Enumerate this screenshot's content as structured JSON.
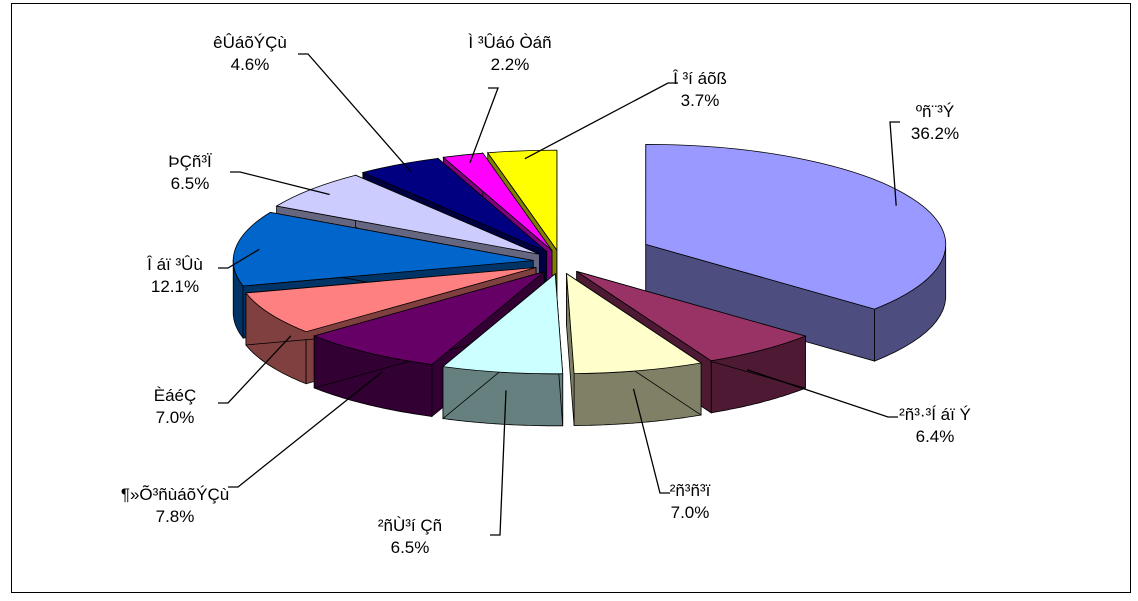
{
  "chart_data": {
    "type": "pie",
    "exploded": true,
    "three_d": true,
    "legend": "none",
    "slices": [
      {
        "label": "ºñ¨³Ý",
        "value": 36.2,
        "display": "36.2%",
        "top_color": "#9999ff",
        "side_color": "#4d4d80"
      },
      {
        "label": "²ñ³·³Í áï Ý",
        "value": 6.4,
        "display": "6.4%",
        "top_color": "#993366",
        "side_color": "#4d1933"
      },
      {
        "label": "²ñ³ñ³ï",
        "value": 7.0,
        "display": "7.0%",
        "top_color": "#ffffcc",
        "side_color": "#808066"
      },
      {
        "label": "²ñÙ³í Çñ",
        "value": 6.5,
        "display": "6.5%",
        "top_color": "#ccffff",
        "side_color": "#668080"
      },
      {
        "label": "¶»Õ³ñùáõÝÇù",
        "value": 7.8,
        "display": "7.8%",
        "top_color": "#660066",
        "side_color": "#330033"
      },
      {
        "label": "ÈáéÇ",
        "value": 7.0,
        "display": "7.0%",
        "top_color": "#ff8080",
        "side_color": "#804040"
      },
      {
        "label": "Î áï ³Ûù",
        "value": 12.1,
        "display": "12.1%",
        "top_color": "#0066cc",
        "side_color": "#003366"
      },
      {
        "label": "ÞÇñ³Ï",
        "value": 6.5,
        "display": "6.5%",
        "top_color": "#ccccff",
        "side_color": "#666680"
      },
      {
        "label": "êÛáõÝÇù",
        "value": 4.6,
        "display": "4.6%",
        "top_color": "#000080",
        "side_color": "#000040"
      },
      {
        "label": "Ì ³Ûáó Òáñ",
        "value": 2.2,
        "display": "2.2%",
        "top_color": "#ff00ff",
        "side_color": "#800080"
      },
      {
        "label": "Î ³í áõß",
        "value": 3.7,
        "display": "3.7%",
        "top_color": "#ffff00",
        "side_color": "#808000"
      }
    ]
  }
}
